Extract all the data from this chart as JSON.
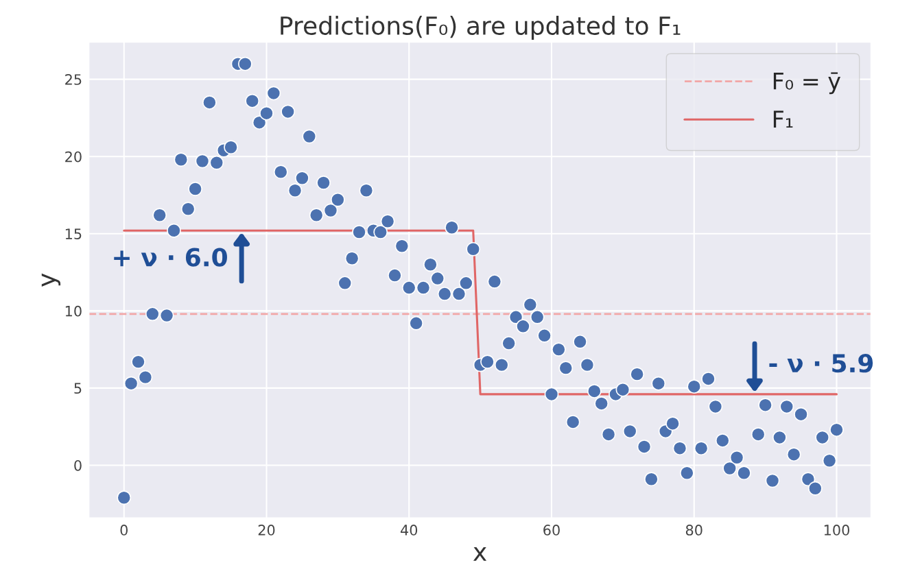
{
  "chart_data": {
    "type": "scatter",
    "title": "Predictions(F₀) are updated to F₁",
    "xlabel": "x",
    "ylabel": "y",
    "xlim": [
      -4.9,
      104.8
    ],
    "ylim": [
      -3.4,
      27.4
    ],
    "xticks": [
      0,
      20,
      40,
      60,
      80,
      100
    ],
    "yticks": [
      0,
      5,
      10,
      15,
      20,
      25
    ],
    "grid": true,
    "legend": "top right",
    "series": [
      {
        "marker": "circle",
        "color": "#4c72b0",
        "x": [
          0,
          1,
          2,
          3,
          4,
          5,
          6,
          7,
          8,
          9,
          10,
          11,
          12,
          13,
          14,
          15,
          16,
          17,
          18,
          19,
          20,
          21,
          22,
          23,
          24,
          25,
          26,
          27,
          28,
          29,
          30,
          31,
          32,
          33,
          34,
          35,
          36,
          37,
          38,
          39,
          40,
          41,
          42,
          43,
          44,
          45,
          46,
          47,
          48,
          49,
          50,
          51,
          52,
          53,
          54,
          55,
          56,
          57,
          58,
          59,
          60,
          61,
          62,
          63,
          64,
          65,
          66,
          67,
          68,
          69,
          70,
          71,
          72,
          73,
          74,
          75,
          76,
          77,
          78,
          79,
          80,
          81,
          82,
          83,
          84,
          85,
          86,
          87,
          89,
          90,
          91,
          92,
          93,
          94,
          95,
          96,
          97,
          98,
          99,
          100
        ],
        "values": [
          -2.1,
          5.3,
          6.7,
          5.7,
          9.8,
          16.2,
          9.7,
          15.2,
          19.8,
          16.6,
          17.9,
          19.7,
          23.5,
          19.6,
          20.4,
          20.6,
          26.0,
          26.0,
          23.6,
          22.2,
          22.8,
          24.1,
          19.0,
          22.9,
          17.8,
          18.6,
          21.3,
          16.2,
          18.3,
          16.5,
          17.2,
          11.8,
          13.4,
          15.1,
          17.8,
          15.2,
          15.1,
          15.8,
          12.3,
          14.2,
          11.5,
          9.2,
          11.5,
          13.0,
          12.1,
          11.1,
          15.4,
          11.1,
          11.8,
          14.0,
          6.5,
          6.7,
          11.9,
          6.5,
          7.9,
          9.6,
          9.0,
          10.4,
          9.6,
          8.4,
          4.6,
          7.5,
          6.3,
          2.8,
          8.0,
          6.5,
          4.8,
          4.0,
          2.0,
          4.6,
          4.9,
          2.2,
          5.9,
          1.2,
          -0.9,
          5.3,
          2.2,
          2.7,
          1.1,
          -0.5,
          5.1,
          1.1,
          5.6,
          3.8,
          1.6,
          -0.2,
          0.5,
          -0.5,
          2.0,
          3.9,
          -1.0,
          1.8,
          3.8,
          0.7,
          3.3,
          -0.9,
          -1.5,
          1.8,
          0.3,
          2.3
        ]
      },
      {
        "type": "line",
        "name": "F₁",
        "color": "#e06666",
        "line_style": "solid",
        "marker": "none",
        "x": [
          0,
          49,
          50,
          100
        ],
        "values": [
          15.2,
          15.2,
          4.6,
          4.6
        ]
      }
    ],
    "ref_lines": [
      {
        "axis": "y",
        "value": 9.8,
        "label": "F₀ = ȳ",
        "color": "#f2a7a7",
        "line_style": "dashed"
      }
    ],
    "annotations": [
      {
        "text": "+ ν · 6.0",
        "x": 16.5,
        "y": 15.2
      },
      {
        "text": "- ν · 5.9",
        "x": 88.5,
        "y": 4.6
      }
    ]
  }
}
